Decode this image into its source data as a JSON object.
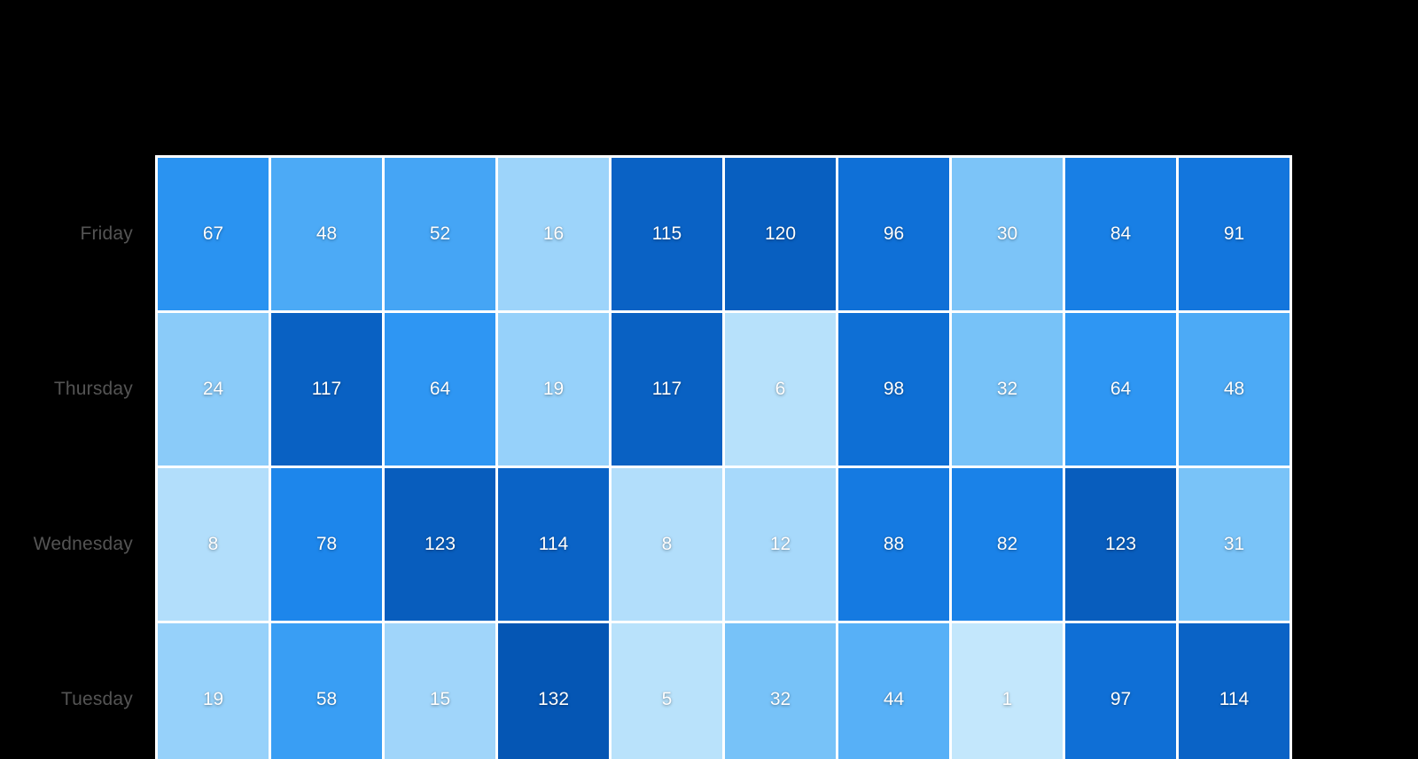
{
  "chart_data": {
    "type": "heatmap",
    "title": "",
    "xlabel": "",
    "ylabel": "",
    "y_categories": [
      "Friday",
      "Thursday",
      "Wednesday",
      "Tuesday"
    ],
    "rows": [
      {
        "label": "Friday",
        "values": [
          67,
          48,
          52,
          16,
          115,
          120,
          96,
          30,
          84,
          91
        ]
      },
      {
        "label": "Thursday",
        "values": [
          24,
          117,
          64,
          19,
          117,
          6,
          98,
          32,
          64,
          48
        ]
      },
      {
        "label": "Wednesday",
        "values": [
          8,
          78,
          123,
          114,
          8,
          12,
          88,
          82,
          123,
          31
        ]
      },
      {
        "label": "Tuesday",
        "values": [
          19,
          58,
          15,
          132,
          5,
          32,
          44,
          1,
          97,
          114
        ]
      }
    ],
    "value_range": [
      0,
      132
    ],
    "grid_on": true,
    "legend": "none",
    "color_scale": {
      "stops": [
        [
          0,
          "#c6e8fc"
        ],
        [
          16,
          "#9dd4fa"
        ],
        [
          32,
          "#77c2f8"
        ],
        [
          48,
          "#4caaf6"
        ],
        [
          64,
          "#2e96f3"
        ],
        [
          80,
          "#1b84ea"
        ],
        [
          96,
          "#0f70d7"
        ],
        [
          132,
          "#0556b4"
        ]
      ]
    }
  },
  "colors": {
    "background": "#000000",
    "grid_line": "#ffffff",
    "row_label_text": "#545454",
    "cell_value_text": "#ffffff"
  }
}
